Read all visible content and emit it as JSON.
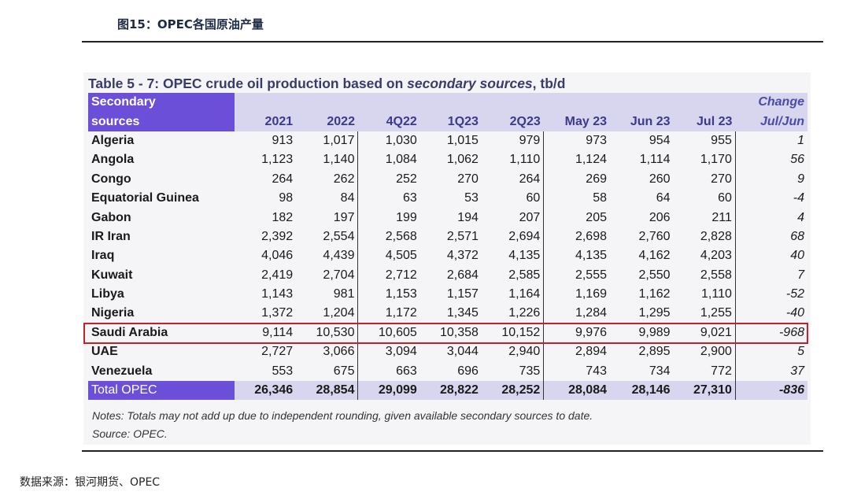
{
  "figure_title": "图15：OPEC各国原油产量",
  "table": {
    "title_prefix": "Table 5 - 7: OPEC crude oil production based on ",
    "title_italic": "secondary sources",
    "title_suffix": ", tb/d",
    "header": {
      "sources_line1": "Secondary",
      "sources_line2": "sources",
      "change_line1": "Change",
      "change_line2": "Jul/Jun",
      "columns": [
        "2021",
        "2022",
        "4Q22",
        "1Q23",
        "2Q23",
        "May 23",
        "Jun 23",
        "Jul 23"
      ]
    },
    "rows": [
      {
        "name": "Algeria",
        "values": [
          "913",
          "1,017",
          "1,030",
          "1,015",
          "979",
          "973",
          "954",
          "955"
        ],
        "change": "1"
      },
      {
        "name": "Angola",
        "values": [
          "1,123",
          "1,140",
          "1,084",
          "1,062",
          "1,110",
          "1,124",
          "1,114",
          "1,170"
        ],
        "change": "56"
      },
      {
        "name": "Congo",
        "values": [
          "264",
          "262",
          "252",
          "270",
          "264",
          "269",
          "260",
          "270"
        ],
        "change": "9"
      },
      {
        "name": "Equatorial Guinea",
        "values": [
          "98",
          "84",
          "63",
          "53",
          "60",
          "58",
          "64",
          "60"
        ],
        "change": "-4"
      },
      {
        "name": "Gabon",
        "values": [
          "182",
          "197",
          "199",
          "194",
          "207",
          "205",
          "206",
          "211"
        ],
        "change": "4"
      },
      {
        "name": "IR Iran",
        "values": [
          "2,392",
          "2,554",
          "2,568",
          "2,571",
          "2,694",
          "2,698",
          "2,760",
          "2,828"
        ],
        "change": "68"
      },
      {
        "name": "Iraq",
        "values": [
          "4,046",
          "4,439",
          "4,505",
          "4,372",
          "4,135",
          "4,135",
          "4,162",
          "4,203"
        ],
        "change": "40"
      },
      {
        "name": "Kuwait",
        "values": [
          "2,419",
          "2,704",
          "2,712",
          "2,684",
          "2,585",
          "2,555",
          "2,550",
          "2,558"
        ],
        "change": "7"
      },
      {
        "name": "Libya",
        "values": [
          "1,143",
          "981",
          "1,153",
          "1,157",
          "1,164",
          "1,169",
          "1,162",
          "1,110"
        ],
        "change": "-52"
      },
      {
        "name": "Nigeria",
        "values": [
          "1,372",
          "1,204",
          "1,172",
          "1,345",
          "1,226",
          "1,284",
          "1,295",
          "1,255"
        ],
        "change": "-40"
      },
      {
        "name": "Saudi Arabia",
        "values": [
          "9,114",
          "10,530",
          "10,605",
          "10,358",
          "10,152",
          "9,976",
          "9,989",
          "9,021"
        ],
        "change": "-968"
      },
      {
        "name": "UAE",
        "values": [
          "2,727",
          "3,066",
          "3,094",
          "3,044",
          "2,940",
          "2,894",
          "2,895",
          "2,900"
        ],
        "change": "5"
      },
      {
        "name": "Venezuela",
        "values": [
          "553",
          "675",
          "663",
          "696",
          "735",
          "743",
          "734",
          "772"
        ],
        "change": "37"
      }
    ],
    "total": {
      "name": "Total  OPEC",
      "values": [
        "26,346",
        "28,854",
        "29,099",
        "28,822",
        "28,252",
        "28,084",
        "28,146",
        "27,310"
      ],
      "change": "-836"
    },
    "highlighted_row": "Saudi Arabia",
    "notes": "Notes: Totals may not add up due to independent rounding, given available secondary sources to date.",
    "source": "Source: OPEC."
  },
  "data_source": "数据来源：银河期货、OPEC",
  "colors": {
    "header_purple": "#6b4fd8",
    "header_lavender": "#d8d6ee",
    "highlight_red": "#c8202a"
  }
}
